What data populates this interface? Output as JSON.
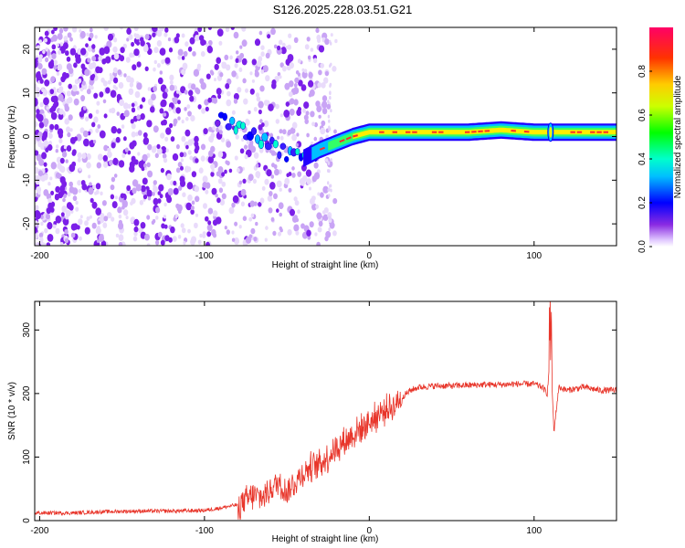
{
  "title": "S126.2025.228.03.51.G21",
  "chart_data": [
    {
      "type": "heatmap",
      "name": "spectrogram",
      "xlabel": "Height of straight line (km)",
      "ylabel": "Frequency (Hz)",
      "xlim": [
        -203,
        150
      ],
      "ylim": [
        -25,
        25
      ],
      "xticks": [
        -200,
        -100,
        0,
        100
      ],
      "yticks": [
        -20,
        -10,
        0,
        10,
        20
      ],
      "colorbar": {
        "label": "Normalized spectral amplitude",
        "range": [
          0,
          1
        ],
        "ticks": [
          "0.0",
          "0.2",
          "0.4",
          "0.6",
          "0.8"
        ]
      },
      "ridge": {
        "description_points_height_km": [
          -90,
          -80,
          -70,
          -60,
          -50,
          -40,
          -30,
          -20,
          -10,
          0,
          10,
          20,
          40,
          60,
          80,
          100,
          110,
          120,
          150
        ],
        "frequency_hz": [
          4,
          2,
          0,
          -2,
          -4,
          -5,
          -3,
          -1.5,
          0,
          1,
          1,
          1,
          1,
          1,
          1.5,
          1,
          1,
          1,
          1
        ]
      },
      "noise_region_km": [
        -203,
        -40
      ]
    },
    {
      "type": "line",
      "name": "snr",
      "xlabel": "Height of straight line (km)",
      "ylabel": "SNR (10 * v/v)",
      "xlim": [
        -203,
        150
      ],
      "ylim": [
        0,
        345
      ],
      "xticks": [
        -200,
        -100,
        0,
        100
      ],
      "yticks": [
        0,
        100,
        200,
        300
      ],
      "color": "#e8352a",
      "series": [
        {
          "name": "SNR",
          "x": [
            -203,
            -180,
            -160,
            -140,
            -120,
            -100,
            -90,
            -80,
            -75,
            -70,
            -65,
            -60,
            -55,
            -50,
            -45,
            -40,
            -35,
            -30,
            -25,
            -20,
            -15,
            -10,
            -5,
            0,
            5,
            10,
            15,
            20,
            25,
            30,
            40,
            50,
            60,
            70,
            80,
            90,
            100,
            105,
            108,
            110,
            112,
            115,
            120,
            130,
            140,
            150
          ],
          "values": [
            12,
            12,
            14,
            15,
            15,
            16,
            20,
            25,
            30,
            40,
            35,
            50,
            60,
            45,
            60,
            75,
            85,
            90,
            100,
            115,
            125,
            135,
            145,
            155,
            165,
            175,
            180,
            195,
            205,
            210,
            212,
            212,
            213,
            214,
            214,
            215,
            215,
            210,
            200,
            270,
            140,
            210,
            205,
            210,
            205,
            205
          ]
        }
      ]
    }
  ]
}
